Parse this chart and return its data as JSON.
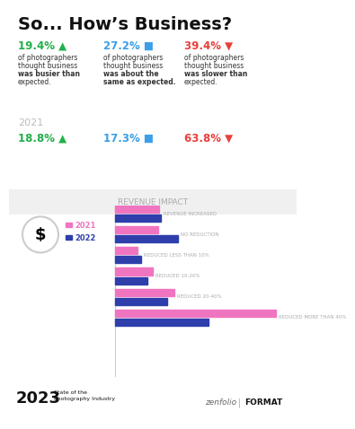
{
  "title": "So... How’s Business?",
  "bg_color": "#ffffff",
  "section1": {
    "stats_2022": [
      {
        "pct": "19.4%",
        "color": "#22b04b",
        "arrow": "▲",
        "desc": "of photographers\nthought business\nwas busier than\nexpected.",
        "bold_word": "busier"
      },
      {
        "pct": "27.2%",
        "color": "#3b9fe8",
        "arrow": "■",
        "desc": "of photographers\nthought business\nwas about the\nsame as expected.",
        "bold_words": [
          "about the",
          "same"
        ]
      },
      {
        "pct": "39.4%",
        "color": "#e8403b",
        "arrow": "▼",
        "desc": "of photographers\nthought business\nwas slower than\nexpected.",
        "bold_word": "slower"
      }
    ],
    "year_2021_label": "2021",
    "stats_2021": [
      {
        "pct": "18.8%",
        "color": "#22b04b",
        "arrow": "▲"
      },
      {
        "pct": "17.3%",
        "color": "#3b9fe8",
        "arrow": "■"
      },
      {
        "pct": "63.8%",
        "color": "#e8403b",
        "arrow": "▼"
      }
    ]
  },
  "section2": {
    "title": "REVENUE IMPACT",
    "title_color": "#aaaaaa",
    "categories": [
      "REVENUE INCREASED",
      "NO REDUCTION",
      "REDUCED LESS THAN 10%",
      "REDUCED 10-20%",
      "REDUCED 20-40%",
      "REDUCED MORE THAN 40%"
    ],
    "values_2021": [
      12.0,
      11.8,
      6.2,
      10.2,
      16.2,
      43.6
    ],
    "values_2022": [
      12.5,
      17.1,
      7.0,
      8.9,
      14.2,
      25.4
    ],
    "color_2021": "#f075c0",
    "color_2022": "#2e3eab"
  },
  "footer": {
    "year": "2023",
    "subtitle": "State of the\nPhotography Industry",
    "footer_bg": "#f0f0f0"
  }
}
